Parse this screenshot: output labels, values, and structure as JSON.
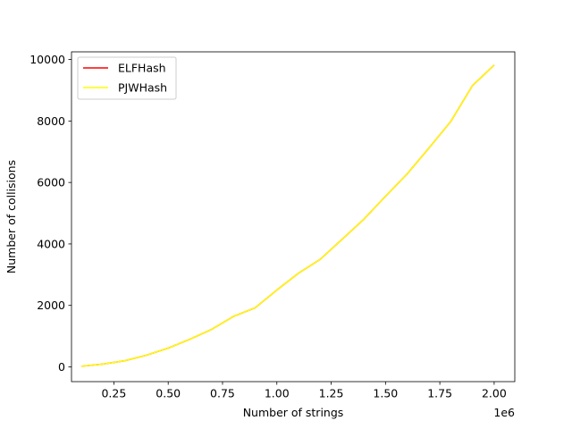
{
  "chart_data": {
    "type": "line",
    "xlabel": "Number of strings",
    "ylabel": "Number of collisions",
    "x_offset_label": "1e6",
    "xlim": [
      0.055,
      2.095
    ],
    "ylim": [
      -480,
      10250
    ],
    "xticks": [
      0.25,
      0.5,
      0.75,
      1.0,
      1.25,
      1.5,
      1.75,
      2.0
    ],
    "xtick_labels": [
      "0.25",
      "0.50",
      "0.75",
      "1.00",
      "1.25",
      "1.50",
      "1.75",
      "2.00"
    ],
    "yticks": [
      0,
      2000,
      4000,
      6000,
      8000,
      10000
    ],
    "ytick_labels": [
      "0",
      "2000",
      "4000",
      "6000",
      "8000",
      "10000"
    ],
    "legend_position": "top-left",
    "grid": false,
    "x": [
      0.1,
      0.2,
      0.3,
      0.4,
      0.5,
      0.6,
      0.7,
      0.8,
      0.9,
      1.0,
      1.1,
      1.2,
      1.3,
      1.4,
      1.5,
      1.6,
      1.7,
      1.8,
      1.9,
      2.0
    ],
    "series": [
      {
        "name": "ELFHash",
        "color": "#ff0000",
        "values": [
          20,
          90,
          200,
          380,
          610,
          900,
          1220,
          1640,
          1920,
          2500,
          3050,
          3500,
          4150,
          4800,
          5550,
          6280,
          7120,
          7980,
          9150,
          9820
        ]
      },
      {
        "name": "PJWHash",
        "color": "#ffff00",
        "values": [
          20,
          90,
          200,
          380,
          610,
          900,
          1220,
          1640,
          1920,
          2500,
          3050,
          3500,
          4150,
          4800,
          5550,
          6280,
          7120,
          7980,
          9150,
          9820
        ]
      }
    ]
  }
}
